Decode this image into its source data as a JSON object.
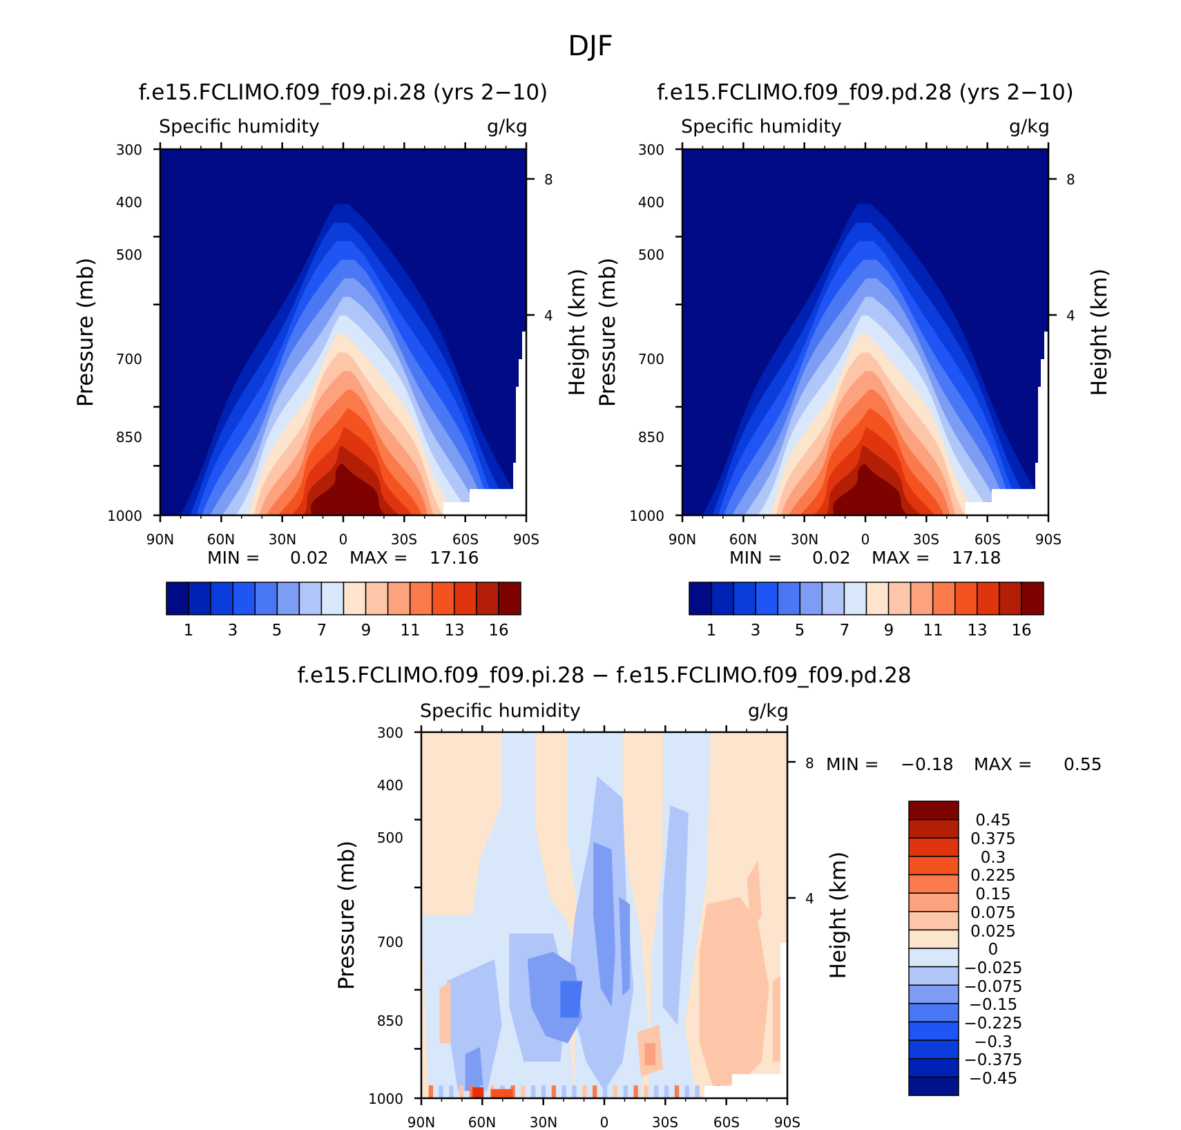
{
  "figure": {
    "title": "DJF"
  },
  "chart_data": [
    {
      "type": "heatmap",
      "panel": "top-left",
      "title": "f.e15.FCLIMO.f09_f09.pi.28 (yrs 2−10)",
      "variable": "Specific humidity",
      "units": "g/kg",
      "ylabel": "Pressure (mb)",
      "ylabel_right": "Height (km)",
      "x_ticks": [
        "90N",
        "60N",
        "30N",
        "0",
        "30S",
        "60S",
        "90S"
      ],
      "y_ticks": [
        "300",
        "400",
        "500",
        "700",
        "850",
        "1000"
      ],
      "y_ticks_right": [
        "8",
        "4"
      ],
      "ylim": [
        1000,
        300
      ],
      "stats": {
        "min_label": "MIN =",
        "min": "0.02",
        "max_label": "MAX =",
        "max": "17.16"
      },
      "colorbar_labels": [
        "1",
        "3",
        "5",
        "7",
        "9",
        "11",
        "13",
        "16"
      ],
      "contour_levels": [
        1,
        2,
        3,
        4,
        5,
        6,
        7,
        8,
        9,
        10,
        11,
        12,
        13,
        14,
        16
      ]
    },
    {
      "type": "heatmap",
      "panel": "top-right",
      "title": "f.e15.FCLIMO.f09_f09.pd.28 (yrs 2−10)",
      "variable": "Specific humidity",
      "units": "g/kg",
      "ylabel": "Pressure (mb)",
      "ylabel_right": "Height (km)",
      "x_ticks": [
        "90N",
        "60N",
        "30N",
        "0",
        "30S",
        "60S",
        "90S"
      ],
      "y_ticks": [
        "300",
        "400",
        "500",
        "700",
        "850",
        "1000"
      ],
      "y_ticks_right": [
        "8",
        "4"
      ],
      "ylim": [
        1000,
        300
      ],
      "stats": {
        "min_label": "MIN =",
        "min": "0.02",
        "max_label": "MAX =",
        "max": "17.18"
      },
      "colorbar_labels": [
        "1",
        "3",
        "5",
        "7",
        "9",
        "11",
        "13",
        "16"
      ],
      "contour_levels": [
        1,
        2,
        3,
        4,
        5,
        6,
        7,
        8,
        9,
        10,
        11,
        12,
        13,
        14,
        16
      ]
    },
    {
      "type": "heatmap",
      "panel": "bottom",
      "title": "f.e15.FCLIMO.f09_f09.pi.28 − f.e15.FCLIMO.f09_f09.pd.28",
      "variable": "Specific humidity",
      "units": "g/kg",
      "ylabel": "Pressure (mb)",
      "ylabel_right": "Height (km)",
      "x_ticks": [
        "90N",
        "60N",
        "30N",
        "0",
        "30S",
        "60S",
        "90S"
      ],
      "y_ticks": [
        "300",
        "400",
        "500",
        "700",
        "850",
        "1000"
      ],
      "y_ticks_right": [
        "8",
        "4"
      ],
      "ylim": [
        1000,
        300
      ],
      "stats": {
        "min_label": "MIN =",
        "min": "−0.18",
        "max_label": "MAX =",
        "max": "0.55"
      },
      "colorbar_labels": [
        "0.45",
        "0.375",
        "0.3",
        "0.225",
        "0.15",
        "0.075",
        "0.025",
        "0",
        "−0.025",
        "−0.075",
        "−0.15",
        "−0.225",
        "−0.3",
        "−0.375",
        "−0.45"
      ]
    }
  ],
  "colors": {
    "seq": [
      "#000b85",
      "#0022b4",
      "#0a3ddb",
      "#1f55f5",
      "#4a78f5",
      "#7d9df5",
      "#b0c6f9",
      "#d8e7f9",
      "#fde4cd",
      "#fdc6a8",
      "#fca27e",
      "#fb7a4c",
      "#f4521f",
      "#e0340f",
      "#b31e06",
      "#7e0300"
    ],
    "diff": [
      "#00128c",
      "#0022b4",
      "#0a3ddb",
      "#1f55f5",
      "#4a78f5",
      "#7d9df5",
      "#b0c6f9",
      "#d8e7f9",
      "#fde4cd",
      "#fdc6a8",
      "#fca27e",
      "#fb7a4c",
      "#f4521f",
      "#e0340f",
      "#b31e06",
      "#7e0300"
    ]
  }
}
